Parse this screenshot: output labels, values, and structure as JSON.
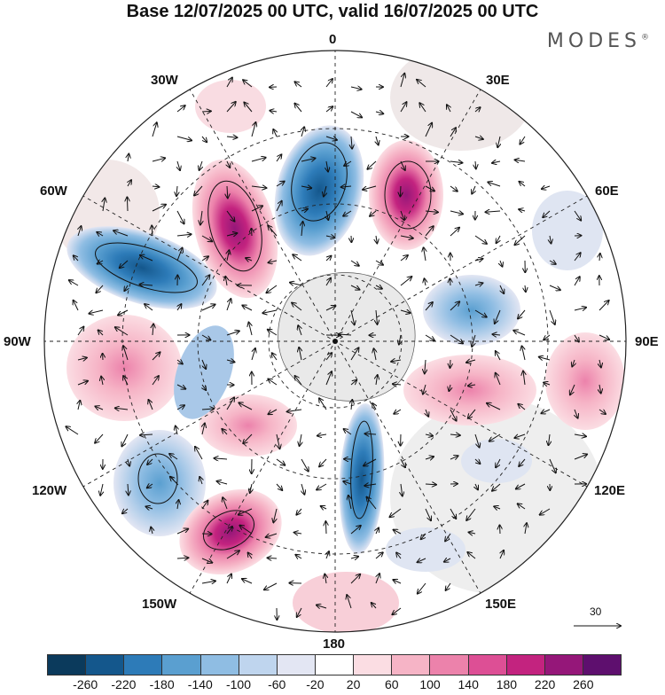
{
  "title": "Base 12/07/2025 00 UTC, valid 16/07/2025 00 UTC",
  "brand": "MODES",
  "brand_mark": "®",
  "longitude_labels": {
    "lon_0": "0",
    "lon_30e": "30E",
    "lon_60e": "60E",
    "lon_90e": "90E",
    "lon_120e": "120E",
    "lon_150e": "150E",
    "lon_180": "180",
    "lon_150w": "150W",
    "lon_120w": "120W",
    "lon_90w": "90W",
    "lon_60w": "60W",
    "lon_30w": "30W"
  },
  "reference_vector": "30",
  "colorbar": {
    "colors": [
      "#0b3a5c",
      "#14578c",
      "#2d7bb8",
      "#5a9fd0",
      "#8fbde3",
      "#bfd5ee",
      "#e3e6f3",
      "#ffffff",
      "#fbdde3",
      "#f6b4c6",
      "#ec82ab",
      "#dd4f95",
      "#c3237f",
      "#951779",
      "#5e0f6e"
    ],
    "tick_labels": [
      "-260",
      "-220",
      "-180",
      "-140",
      "-100",
      "-60",
      "-20",
      "20",
      "60",
      "100",
      "140",
      "180",
      "220",
      "260"
    ]
  },
  "map_data": {
    "projection": "polar stereographic, south pole centered",
    "anomalies": [
      {
        "region": "south of Africa (0 to 15E)",
        "sign": "negative",
        "level": -220
      },
      {
        "region": "south of Africa (20E to 35E)",
        "sign": "positive",
        "level": 260
      },
      {
        "region": "southwest of South America (60W to 30W)",
        "sign": "positive",
        "level": 220
      },
      {
        "region": "Southeast Pacific (90W to 60W)",
        "sign": "negative",
        "level": -260
      },
      {
        "region": "South Pacific (120W)",
        "sign": "negative",
        "level": -180
      },
      {
        "region": "South Pacific (150W)",
        "sign": "positive",
        "level": 180
      },
      {
        "region": "south of New Zealand (180)",
        "sign": "negative",
        "level": -180
      },
      {
        "region": "South Indian Ocean (60E to 90E)",
        "sign": "negative",
        "level": -140
      },
      {
        "region": "South Indian Ocean (100E)",
        "sign": "positive",
        "level": 140
      },
      {
        "region": "Southeast Pacific (90W)",
        "sign": "positive",
        "level": 140
      }
    ]
  }
}
